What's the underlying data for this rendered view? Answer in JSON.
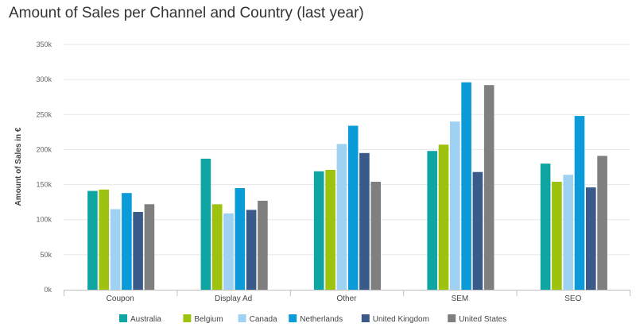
{
  "chart_data": {
    "type": "bar",
    "title": "Amount of Sales per Channel and Country (last year)",
    "xlabel": "",
    "ylabel": "Amount of Sales in €",
    "ylim": [
      0,
      350000
    ],
    "yticks": [
      "0k",
      "50k",
      "100k",
      "150k",
      "200k",
      "250k",
      "300k",
      "350k"
    ],
    "grid": true,
    "legend_position": "bottom",
    "categories": [
      "Coupon",
      "Display Ad",
      "Other",
      "SEM",
      "SEO"
    ],
    "series": [
      {
        "name": "Australia",
        "color": "#0fa5a2",
        "values": [
          141000,
          187000,
          169000,
          198000,
          180000
        ]
      },
      {
        "name": "Belgium",
        "color": "#9dc30f",
        "values": [
          143000,
          122000,
          171000,
          207000,
          154000
        ]
      },
      {
        "name": "Canada",
        "color": "#9fd1f2",
        "values": [
          115000,
          109000,
          208000,
          240000,
          164000
        ]
      },
      {
        "name": "Netherlands",
        "color": "#0a9bd8",
        "values": [
          138000,
          145000,
          234000,
          296000,
          248000
        ]
      },
      {
        "name": "United Kingdom",
        "color": "#3a5a8a",
        "values": [
          111000,
          114000,
          195000,
          168000,
          146000
        ]
      },
      {
        "name": "United States",
        "color": "#7f7f7f",
        "values": [
          122000,
          127000,
          154000,
          292000,
          191000
        ]
      }
    ]
  }
}
